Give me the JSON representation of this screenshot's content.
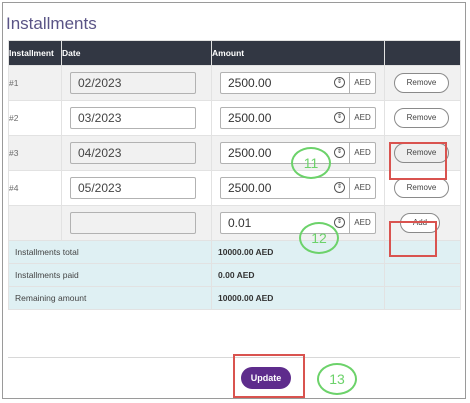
{
  "page": {
    "heading": "Installments"
  },
  "table": {
    "headers": [
      "Installment",
      "Date",
      "Amount",
      ""
    ],
    "rows": [
      {
        "label": "#1",
        "date": "02/2023",
        "amount": "2500.00",
        "currency": "AED",
        "action": "Remove"
      },
      {
        "label": "#2",
        "date": "03/2023",
        "amount": "2500.00",
        "currency": "AED",
        "action": "Remove"
      },
      {
        "label": "#3",
        "date": "04/2023",
        "amount": "2500.00",
        "currency": "AED",
        "action": "Remove"
      },
      {
        "label": "#4",
        "date": "05/2023",
        "amount": "2500.00",
        "currency": "AED",
        "action": "Remove"
      }
    ],
    "new_row": {
      "date": "",
      "amount": "0.01",
      "currency": "AED",
      "action": "Add"
    }
  },
  "summary": [
    {
      "label": "Installments total",
      "value": "10000.00  AED"
    },
    {
      "label": "Installments paid",
      "value": "0.00  AED"
    },
    {
      "label": "Remaining amount",
      "value": "10000.00  AED"
    }
  ],
  "footer": {
    "update_label": "Update"
  },
  "annotations": {
    "callout_11": "11",
    "callout_12": "12",
    "callout_13": "13"
  },
  "colors": {
    "header_bg": "#323743",
    "accent_button": "#5e2c8c",
    "highlight_red": "#d9534f",
    "callout_green": "#6cd26a",
    "summary_bg": "#dff0f3"
  }
}
